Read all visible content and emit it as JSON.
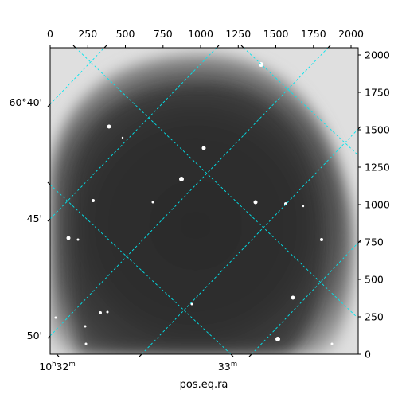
{
  "figure": {
    "xlabel": "pos.eq.ra",
    "top_axis_ticks": [
      "0",
      "250",
      "500",
      "750",
      "1000",
      "1250",
      "1500",
      "1750",
      "2000"
    ],
    "right_axis_ticks": [
      "0",
      "250",
      "500",
      "750",
      "1000",
      "1250",
      "1500",
      "1750",
      "2000"
    ],
    "left_world_ticks": [
      "60°40'",
      "45'",
      "50'"
    ],
    "bottom_world_ticks": {
      "t1": {
        "base": "10",
        "h": "h",
        "mid": "32",
        "m": "m"
      },
      "t2": {
        "base": "33",
        "m": "m"
      }
    },
    "grid_color": "#00e5ee",
    "frame_color": "#000000"
  }
}
